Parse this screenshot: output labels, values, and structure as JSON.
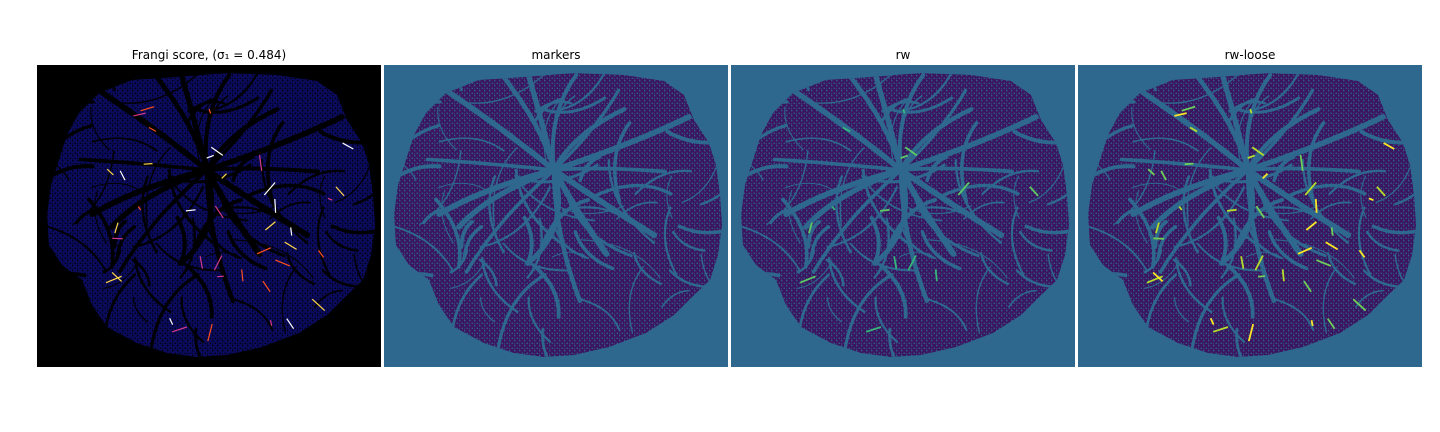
{
  "figure": {
    "panels": [
      {
        "id": "frangi",
        "title": "Frangi score, (σ₁ = 0.484)",
        "colormap": "gnuplot2",
        "background": "#000000",
        "blob_fill": "#0b0b5e",
        "vessel_color": "#000000",
        "highlight_colors": [
          "#ff4f1f",
          "#ffd84a",
          "#d6398a",
          "#ffffff"
        ]
      },
      {
        "id": "markers",
        "title": "markers",
        "colormap": "viridis",
        "background": "#2e688e",
        "blob_fill": "#3b1560",
        "vessel_color": "#2e688e",
        "highlight_colors": [
          "#2e688e"
        ]
      },
      {
        "id": "rw",
        "title": "rw",
        "colormap": "viridis",
        "background": "#2e688e",
        "blob_fill": "#3b1560",
        "vessel_color": "#2e688e",
        "highlight_colors": [
          "#35b779",
          "#5ec962"
        ]
      },
      {
        "id": "rw-loose",
        "title": "rw-loose",
        "colormap": "viridis",
        "background": "#2e688e",
        "blob_fill": "#3b1560",
        "vessel_color": "#2e688e",
        "highlight_colors": [
          "#b5de2b",
          "#fde725",
          "#6ece58"
        ]
      }
    ]
  }
}
